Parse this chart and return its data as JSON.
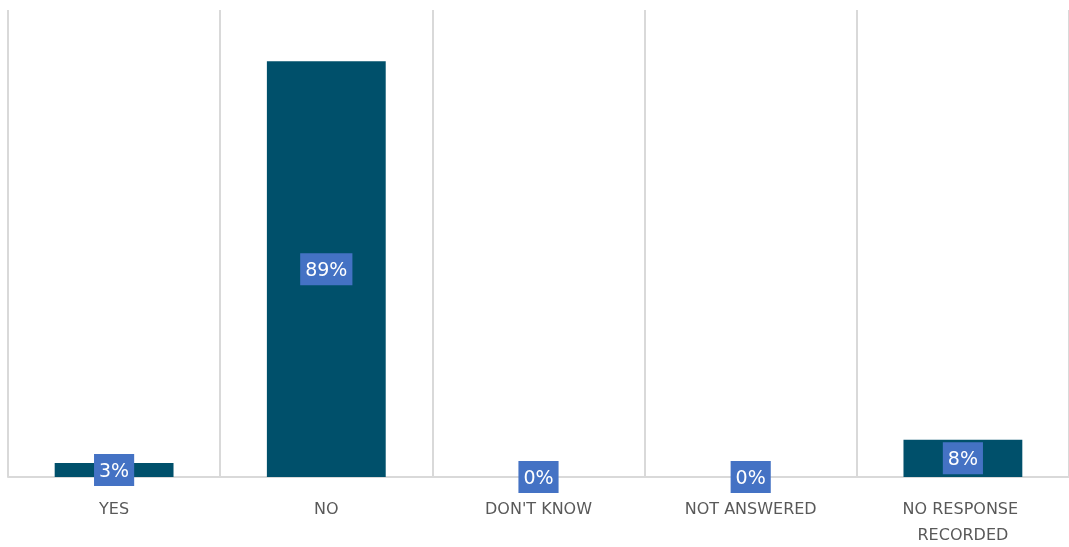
{
  "chart_data": {
    "type": "bar",
    "categories": [
      "YES",
      "NO",
      "DON'T KNOW",
      "NOT ANSWERED",
      "NO RESPONSE RECORDED"
    ],
    "values": [
      3,
      89,
      0,
      0,
      8
    ],
    "color": "#00506b",
    "value_labels": [
      "3%",
      "89%",
      "0%",
      "0%",
      "8%"
    ],
    "grid": "x",
    "tick_labels": "x"
  }
}
